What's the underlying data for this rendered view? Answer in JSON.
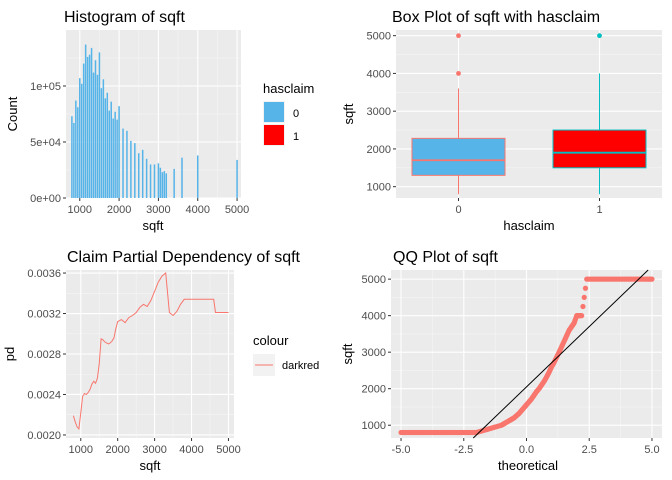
{
  "chart_data": [
    {
      "type": "bar",
      "title": "Histogram of sqft",
      "xlabel": "sqft",
      "ylabel": "Count",
      "xlim": [
        650,
        5100
      ],
      "ylim": [
        0,
        150000
      ],
      "xticks": [
        1000,
        2000,
        3000,
        4000,
        5000
      ],
      "yticks": [
        {
          "v": 0,
          "label": "0e+00"
        },
        {
          "v": 50000,
          "label": "5e+04"
        },
        {
          "v": 100000,
          "label": "1e+05"
        }
      ],
      "grid": true,
      "legend": {
        "title": "hasclaim",
        "position": "right",
        "entries": [
          {
            "label": "0",
            "color": "#56b4e9"
          },
          {
            "label": "1",
            "color": "#ff0000"
          }
        ]
      },
      "bin_width": 30,
      "bars": [
        {
          "x": 800,
          "y": 73000
        },
        {
          "x": 850,
          "y": 67000
        },
        {
          "x": 900,
          "y": 87000
        },
        {
          "x": 950,
          "y": 81000
        },
        {
          "x": 1000,
          "y": 107000
        },
        {
          "x": 1050,
          "y": 102000
        },
        {
          "x": 1100,
          "y": 120000
        },
        {
          "x": 1150,
          "y": 137000
        },
        {
          "x": 1200,
          "y": 126000
        },
        {
          "x": 1250,
          "y": 128000
        },
        {
          "x": 1300,
          "y": 134000
        },
        {
          "x": 1350,
          "y": 112000
        },
        {
          "x": 1400,
          "y": 123000
        },
        {
          "x": 1450,
          "y": 110000
        },
        {
          "x": 1500,
          "y": 130000
        },
        {
          "x": 1550,
          "y": 98000
        },
        {
          "x": 1600,
          "y": 106000
        },
        {
          "x": 1650,
          "y": 89000
        },
        {
          "x": 1700,
          "y": 94000
        },
        {
          "x": 1750,
          "y": 78000
        },
        {
          "x": 1800,
          "y": 86000
        },
        {
          "x": 1850,
          "y": 71000
        },
        {
          "x": 1900,
          "y": 77000
        },
        {
          "x": 1950,
          "y": 70000
        },
        {
          "x": 2000,
          "y": 82000
        },
        {
          "x": 2100,
          "y": 62000
        },
        {
          "x": 2200,
          "y": 60000
        },
        {
          "x": 2300,
          "y": 51000
        },
        {
          "x": 2400,
          "y": 49000
        },
        {
          "x": 2500,
          "y": 40000
        },
        {
          "x": 2600,
          "y": 43000
        },
        {
          "x": 2700,
          "y": 35000
        },
        {
          "x": 2800,
          "y": 30000
        },
        {
          "x": 2900,
          "y": 30000
        },
        {
          "x": 3000,
          "y": 31000
        },
        {
          "x": 3050,
          "y": 27000
        },
        {
          "x": 3100,
          "y": 23000
        },
        {
          "x": 3150,
          "y": 24000
        },
        {
          "x": 3200,
          "y": 22000
        },
        {
          "x": 3400,
          "y": 26000
        },
        {
          "x": 3600,
          "y": 36000
        },
        {
          "x": 4000,
          "y": 38000
        },
        {
          "x": 5000,
          "y": 34000
        }
      ]
    },
    {
      "type": "boxplot",
      "title": "Box Plot of sqft with hasclaim",
      "xlabel": "hasclaim",
      "ylabel": "sqft",
      "categories": [
        "0",
        "1"
      ],
      "ylim": [
        700,
        5150
      ],
      "yticks": [
        1000,
        2000,
        3000,
        4000,
        5000
      ],
      "grid": true,
      "boxes": [
        {
          "category": "0",
          "q1": 1300,
          "median": 1700,
          "q3": 2280,
          "whisker_low": 800,
          "whisker_high": 3600,
          "outliers": [
            4000,
            5000
          ],
          "fill": "#56b4e9",
          "line": "#f8766d"
        },
        {
          "category": "1",
          "q1": 1500,
          "median": 1900,
          "q3": 2500,
          "whisker_low": 800,
          "whisker_high": 4000,
          "outliers": [
            5000
          ],
          "fill": "#ff0000",
          "line": "#00bfc4"
        }
      ]
    },
    {
      "type": "line",
      "title": "Claim Partial Dependency of sqft",
      "xlabel": "sqft",
      "ylabel": "pd",
      "xlim": [
        600,
        5150
      ],
      "ylim": [
        0.00197,
        0.00363
      ],
      "xticks": [
        1000,
        2000,
        3000,
        4000,
        5000
      ],
      "yticks": [
        {
          "v": 0.002,
          "label": "0.0020"
        },
        {
          "v": 0.0024,
          "label": "0.0024"
        },
        {
          "v": 0.0028,
          "label": "0.0028"
        },
        {
          "v": 0.0032,
          "label": "0.0032"
        },
        {
          "v": 0.0036,
          "label": "0.0036"
        }
      ],
      "grid": true,
      "legend": {
        "title": "colour",
        "position": "right",
        "entries": [
          {
            "label": "darkred",
            "color": "#f8766d"
          }
        ]
      },
      "series": [
        {
          "color": "#f8766d",
          "points": [
            [
              800,
              0.00219
            ],
            [
              850,
              0.00213
            ],
            [
              900,
              0.00208
            ],
            [
              950,
              0.00206
            ],
            [
              1000,
              0.00222
            ],
            [
              1050,
              0.00238
            ],
            [
              1100,
              0.00241
            ],
            [
              1150,
              0.0024
            ],
            [
              1200,
              0.00242
            ],
            [
              1250,
              0.00245
            ],
            [
              1300,
              0.0025
            ],
            [
              1350,
              0.00253
            ],
            [
              1400,
              0.00251
            ],
            [
              1450,
              0.00256
            ],
            [
              1500,
              0.0027
            ],
            [
              1550,
              0.00295
            ],
            [
              1600,
              0.00294
            ],
            [
              1650,
              0.00292
            ],
            [
              1700,
              0.00291
            ],
            [
              1750,
              0.0029
            ],
            [
              1800,
              0.00291
            ],
            [
              1850,
              0.00293
            ],
            [
              1900,
              0.00296
            ],
            [
              1950,
              0.00305
            ],
            [
              2000,
              0.00312
            ],
            [
              2100,
              0.00314
            ],
            [
              2200,
              0.00311
            ],
            [
              2300,
              0.00316
            ],
            [
              2400,
              0.00318
            ],
            [
              2500,
              0.00321
            ],
            [
              2600,
              0.00326
            ],
            [
              2700,
              0.00329
            ],
            [
              2800,
              0.00327
            ],
            [
              2900,
              0.00333
            ],
            [
              3000,
              0.00342
            ],
            [
              3100,
              0.00351
            ],
            [
              3200,
              0.00357
            ],
            [
              3300,
              0.0036
            ],
            [
              3400,
              0.00321
            ],
            [
              3500,
              0.00318
            ],
            [
              3600,
              0.00322
            ],
            [
              3700,
              0.00329
            ],
            [
              3800,
              0.00334
            ],
            [
              3900,
              0.00334
            ],
            [
              4000,
              0.00334
            ],
            [
              4200,
              0.00334
            ],
            [
              4400,
              0.00334
            ],
            [
              4600,
              0.00334
            ],
            [
              4650,
              0.00321
            ],
            [
              5000,
              0.00321
            ]
          ]
        }
      ]
    },
    {
      "type": "scatter",
      "title": "QQ Plot of sqft",
      "xlabel": "theoretical",
      "ylabel": "sqft",
      "xlim": [
        -5.4,
        5.4
      ],
      "ylim": [
        650,
        5250
      ],
      "xticks": [
        {
          "v": -5.0,
          "label": "-5.0"
        },
        {
          "v": -2.5,
          "label": "-2.5"
        },
        {
          "v": 0.0,
          "label": "0.0"
        },
        {
          "v": 2.5,
          "label": "2.5"
        },
        {
          "v": 5.0,
          "label": "5.0"
        }
      ],
      "yticks": [
        1000,
        2000,
        3000,
        4000,
        5000
      ],
      "grid": true,
      "point_color": "#f8766d",
      "reference_line": {
        "slope": 660,
        "intercept": 2050,
        "color": "#000000"
      },
      "points": [
        [
          -5.0,
          800
        ],
        [
          -4.7,
          800
        ],
        [
          -4.4,
          800
        ],
        [
          -4.1,
          800
        ],
        [
          -3.8,
          800
        ],
        [
          -3.5,
          800
        ],
        [
          -3.2,
          800
        ],
        [
          -2.9,
          800
        ],
        [
          -2.6,
          800
        ],
        [
          -2.3,
          800
        ],
        [
          -2.0,
          800
        ],
        [
          -1.8,
          840
        ],
        [
          -1.6,
          880
        ],
        [
          -1.4,
          920
        ],
        [
          -1.2,
          960
        ],
        [
          -1.0,
          1000
        ],
        [
          -0.9,
          1040
        ],
        [
          -0.8,
          1080
        ],
        [
          -0.7,
          1120
        ],
        [
          -0.6,
          1160
        ],
        [
          -0.5,
          1200
        ],
        [
          -0.4,
          1260
        ],
        [
          -0.3,
          1320
        ],
        [
          -0.2,
          1400
        ],
        [
          -0.1,
          1480
        ],
        [
          0.0,
          1560
        ],
        [
          0.1,
          1640
        ],
        [
          0.2,
          1720
        ],
        [
          0.3,
          1820
        ],
        [
          0.4,
          1920
        ],
        [
          0.5,
          2000
        ],
        [
          0.6,
          2100
        ],
        [
          0.7,
          2200
        ],
        [
          0.8,
          2320
        ],
        [
          0.9,
          2450
        ],
        [
          1.0,
          2600
        ],
        [
          1.1,
          2720
        ],
        [
          1.2,
          2860
        ],
        [
          1.3,
          3000
        ],
        [
          1.4,
          3150
        ],
        [
          1.5,
          3300
        ],
        [
          1.6,
          3450
        ],
        [
          1.7,
          3600
        ],
        [
          1.8,
          3700
        ],
        [
          1.9,
          3800
        ],
        [
          2.0,
          4000
        ],
        [
          2.1,
          4000
        ],
        [
          2.2,
          4000
        ],
        [
          2.4,
          5000
        ],
        [
          2.7,
          5000
        ],
        [
          3.0,
          5000
        ],
        [
          3.3,
          5000
        ],
        [
          3.6,
          5000
        ],
        [
          3.9,
          5000
        ],
        [
          4.2,
          5000
        ],
        [
          4.5,
          5000
        ],
        [
          4.8,
          5000
        ],
        [
          5.0,
          5000
        ]
      ]
    }
  ]
}
